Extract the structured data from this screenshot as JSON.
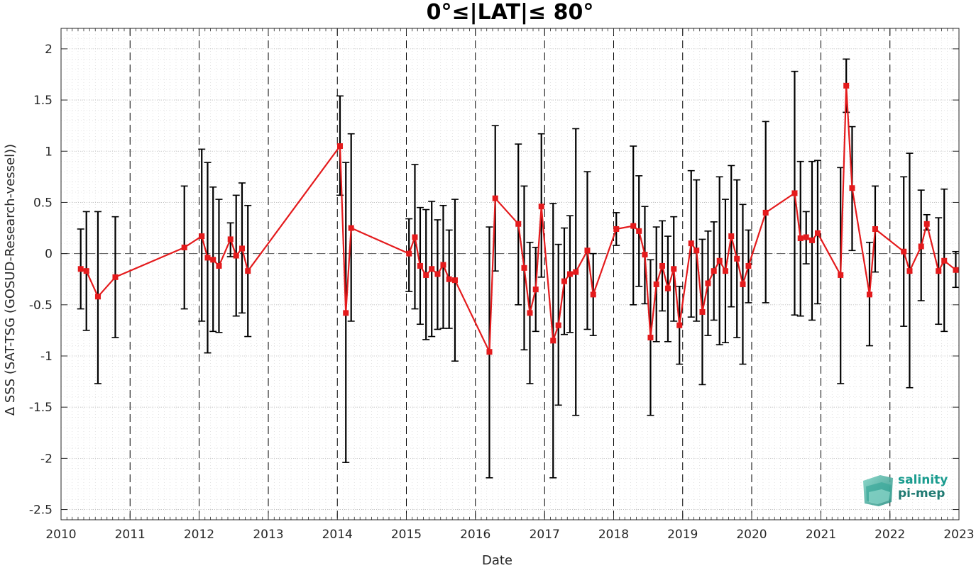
{
  "chart_data": {
    "type": "line",
    "title": "0°≤|LAT|≤ 80°",
    "xlabel": "Date",
    "ylabel": "Δ SSS (SAT-TSG (GOSUD-Research-vessel))",
    "xlim": [
      "2010-01-01",
      "2023-01-01"
    ],
    "ylim": [
      -2.6,
      2.2
    ],
    "x_tick_labels": [
      "2010",
      "2011",
      "2012",
      "2013",
      "2014",
      "2015",
      "2016",
      "2017",
      "2018",
      "2019",
      "2020",
      "2021",
      "2022",
      "2023"
    ],
    "y_ticks": [
      -2.5,
      -2,
      -1.5,
      -1,
      -0.5,
      0,
      0.5,
      1,
      1.5,
      2
    ],
    "y_tick_labels": [
      "-2.5",
      "-2",
      "-1.5",
      "-1",
      "-0.5",
      "0",
      "0.5",
      "1",
      "1.5",
      "2"
    ],
    "grid": "minor dotted",
    "reference_line_y": 0,
    "year_boundary_dashed_lines": true,
    "colors": {
      "series": "#e41a1c",
      "errorbar": "#000000"
    },
    "series": [
      {
        "marker": "square",
        "points": [
          {
            "date": "2010-04-15",
            "y": -0.15,
            "lo": -0.54,
            "hi": 0.24
          },
          {
            "date": "2010-05-15",
            "y": -0.17,
            "lo": -0.75,
            "hi": 0.41
          },
          {
            "date": "2010-07-15",
            "y": -0.42,
            "lo": -1.27,
            "hi": 0.41
          },
          {
            "date": "2010-10-15",
            "y": -0.23,
            "lo": -0.82,
            "hi": 0.36
          },
          {
            "date": "2011-10-15",
            "y": 0.06,
            "lo": -0.54,
            "hi": 0.66
          },
          {
            "date": "2012-01-15",
            "y": 0.17,
            "lo": -0.66,
            "hi": 1.02
          },
          {
            "date": "2012-02-15",
            "y": -0.04,
            "lo": -0.97,
            "hi": 0.89
          },
          {
            "date": "2012-03-15",
            "y": -0.06,
            "lo": -0.76,
            "hi": 0.65
          },
          {
            "date": "2012-04-15",
            "y": -0.12,
            "lo": -0.77,
            "hi": 0.53
          },
          {
            "date": "2012-06-15",
            "y": 0.14,
            "lo": -0.03,
            "hi": 0.3
          },
          {
            "date": "2012-07-15",
            "y": -0.02,
            "lo": -0.61,
            "hi": 0.57
          },
          {
            "date": "2012-08-15",
            "y": 0.05,
            "lo": -0.58,
            "hi": 0.69
          },
          {
            "date": "2012-09-15",
            "y": -0.17,
            "lo": -0.81,
            "hi": 0.47
          },
          {
            "date": "2014-01-15",
            "y": 1.05,
            "lo": 0.57,
            "hi": 1.54
          },
          {
            "date": "2014-02-15",
            "y": -0.58,
            "lo": -2.04,
            "hi": 0.89
          },
          {
            "date": "2014-03-15",
            "y": 0.25,
            "lo": -0.66,
            "hi": 1.17
          },
          {
            "date": "2015-01-15",
            "y": 0.0,
            "lo": -0.37,
            "hi": 0.34
          },
          {
            "date": "2015-02-15",
            "y": 0.16,
            "lo": -0.54,
            "hi": 0.87
          },
          {
            "date": "2015-03-15",
            "y": -0.12,
            "lo": -0.69,
            "hi": 0.45
          },
          {
            "date": "2015-04-15",
            "y": -0.21,
            "lo": -0.84,
            "hi": 0.43
          },
          {
            "date": "2015-05-15",
            "y": -0.15,
            "lo": -0.81,
            "hi": 0.51
          },
          {
            "date": "2015-06-15",
            "y": -0.2,
            "lo": -0.74,
            "hi": 0.33
          },
          {
            "date": "2015-07-15",
            "y": -0.11,
            "lo": -0.73,
            "hi": 0.47
          },
          {
            "date": "2015-08-15",
            "y": -0.25,
            "lo": -0.73,
            "hi": 0.23
          },
          {
            "date": "2015-09-15",
            "y": -0.26,
            "lo": -1.05,
            "hi": 0.53
          },
          {
            "date": "2016-03-15",
            "y": -0.96,
            "lo": -2.19,
            "hi": 0.26
          },
          {
            "date": "2016-04-15",
            "y": 0.54,
            "lo": -0.17,
            "hi": 1.25
          },
          {
            "date": "2016-08-15",
            "y": 0.29,
            "lo": -0.5,
            "hi": 1.07
          },
          {
            "date": "2016-09-15",
            "y": -0.14,
            "lo": -0.94,
            "hi": 0.66
          },
          {
            "date": "2016-10-15",
            "y": -0.58,
            "lo": -1.27,
            "hi": 0.11
          },
          {
            "date": "2016-11-15",
            "y": -0.35,
            "lo": -0.76,
            "hi": 0.06
          },
          {
            "date": "2016-12-15",
            "y": 0.46,
            "lo": -0.23,
            "hi": 1.17
          },
          {
            "date": "2017-02-15",
            "y": -0.85,
            "lo": -2.19,
            "hi": 0.49
          },
          {
            "date": "2017-03-15",
            "y": -0.7,
            "lo": -1.48,
            "hi": 0.09
          },
          {
            "date": "2017-04-15",
            "y": -0.27,
            "lo": -0.79,
            "hi": 0.25
          },
          {
            "date": "2017-05-15",
            "y": -0.2,
            "lo": -0.77,
            "hi": 0.37
          },
          {
            "date": "2017-06-15",
            "y": -0.18,
            "lo": -1.58,
            "hi": 1.22
          },
          {
            "date": "2017-08-15",
            "y": 0.03,
            "lo": -0.74,
            "hi": 0.8
          },
          {
            "date": "2017-09-15",
            "y": -0.4,
            "lo": -0.8,
            "hi": 0.0
          },
          {
            "date": "2018-01-15",
            "y": 0.24,
            "lo": 0.08,
            "hi": 0.4
          },
          {
            "date": "2018-04-15",
            "y": 0.27,
            "lo": -0.5,
            "hi": 1.05
          },
          {
            "date": "2018-05-15",
            "y": 0.22,
            "lo": -0.32,
            "hi": 0.76
          },
          {
            "date": "2018-06-15",
            "y": -0.01,
            "lo": -0.49,
            "hi": 0.46
          },
          {
            "date": "2018-07-15",
            "y": -0.82,
            "lo": -1.58,
            "hi": -0.06
          },
          {
            "date": "2018-08-15",
            "y": -0.3,
            "lo": -0.86,
            "hi": 0.26
          },
          {
            "date": "2018-09-15",
            "y": -0.12,
            "lo": -0.56,
            "hi": 0.32
          },
          {
            "date": "2018-10-15",
            "y": -0.34,
            "lo": -0.86,
            "hi": 0.17
          },
          {
            "date": "2018-11-15",
            "y": -0.15,
            "lo": -0.66,
            "hi": 0.36
          },
          {
            "date": "2018-12-15",
            "y": -0.7,
            "lo": -1.08,
            "hi": -0.32
          },
          {
            "date": "2019-02-15",
            "y": 0.1,
            "lo": -0.62,
            "hi": 0.81
          },
          {
            "date": "2019-03-15",
            "y": 0.03,
            "lo": -0.66,
            "hi": 0.72
          },
          {
            "date": "2019-04-15",
            "y": -0.57,
            "lo": -1.28,
            "hi": 0.14
          },
          {
            "date": "2019-05-15",
            "y": -0.29,
            "lo": -0.8,
            "hi": 0.22
          },
          {
            "date": "2019-06-15",
            "y": -0.17,
            "lo": -0.65,
            "hi": 0.31
          },
          {
            "date": "2019-07-15",
            "y": -0.07,
            "lo": -0.89,
            "hi": 0.75
          },
          {
            "date": "2019-08-15",
            "y": -0.17,
            "lo": -0.87,
            "hi": 0.53
          },
          {
            "date": "2019-09-15",
            "y": 0.17,
            "lo": -0.52,
            "hi": 0.86
          },
          {
            "date": "2019-10-15",
            "y": -0.05,
            "lo": -0.82,
            "hi": 0.72
          },
          {
            "date": "2019-11-15",
            "y": -0.3,
            "lo": -1.08,
            "hi": 0.48
          },
          {
            "date": "2019-12-15",
            "y": -0.12,
            "lo": -0.48,
            "hi": 0.23
          },
          {
            "date": "2020-03-15",
            "y": 0.4,
            "lo": -0.48,
            "hi": 1.29
          },
          {
            "date": "2020-08-15",
            "y": 0.59,
            "lo": -0.6,
            "hi": 1.78
          },
          {
            "date": "2020-09-15",
            "y": 0.15,
            "lo": -0.61,
            "hi": 0.9
          },
          {
            "date": "2020-10-15",
            "y": 0.16,
            "lo": -0.1,
            "hi": 0.41
          },
          {
            "date": "2020-11-15",
            "y": 0.13,
            "lo": -0.65,
            "hi": 0.9
          },
          {
            "date": "2020-12-15",
            "y": 0.2,
            "lo": -0.49,
            "hi": 0.91
          },
          {
            "date": "2021-04-15",
            "y": -0.21,
            "lo": -1.27,
            "hi": 0.84
          },
          {
            "date": "2021-05-15",
            "y": 1.64,
            "lo": 1.38,
            "hi": 1.9
          },
          {
            "date": "2021-06-15",
            "y": 0.64,
            "lo": 0.03,
            "hi": 1.24
          },
          {
            "date": "2021-09-15",
            "y": -0.4,
            "lo": -0.9,
            "hi": 0.11
          },
          {
            "date": "2021-10-15",
            "y": 0.24,
            "lo": -0.18,
            "hi": 0.66
          },
          {
            "date": "2022-03-15",
            "y": 0.02,
            "lo": -0.71,
            "hi": 0.75
          },
          {
            "date": "2022-04-15",
            "y": -0.17,
            "lo": -1.31,
            "hi": 0.98
          },
          {
            "date": "2022-06-15",
            "y": 0.07,
            "lo": -0.46,
            "hi": 0.62
          },
          {
            "date": "2022-07-15",
            "y": 0.29,
            "lo": 0.23,
            "hi": 0.38
          },
          {
            "date": "2022-09-15",
            "y": -0.17,
            "lo": -0.69,
            "hi": 0.35
          },
          {
            "date": "2022-10-15",
            "y": -0.07,
            "lo": -0.76,
            "hi": 0.63
          },
          {
            "date": "2022-12-15",
            "y": -0.16,
            "lo": -0.33,
            "hi": 0.02
          }
        ]
      }
    ]
  },
  "logo": {
    "line1": "salinity",
    "line2": "pi-mep"
  }
}
